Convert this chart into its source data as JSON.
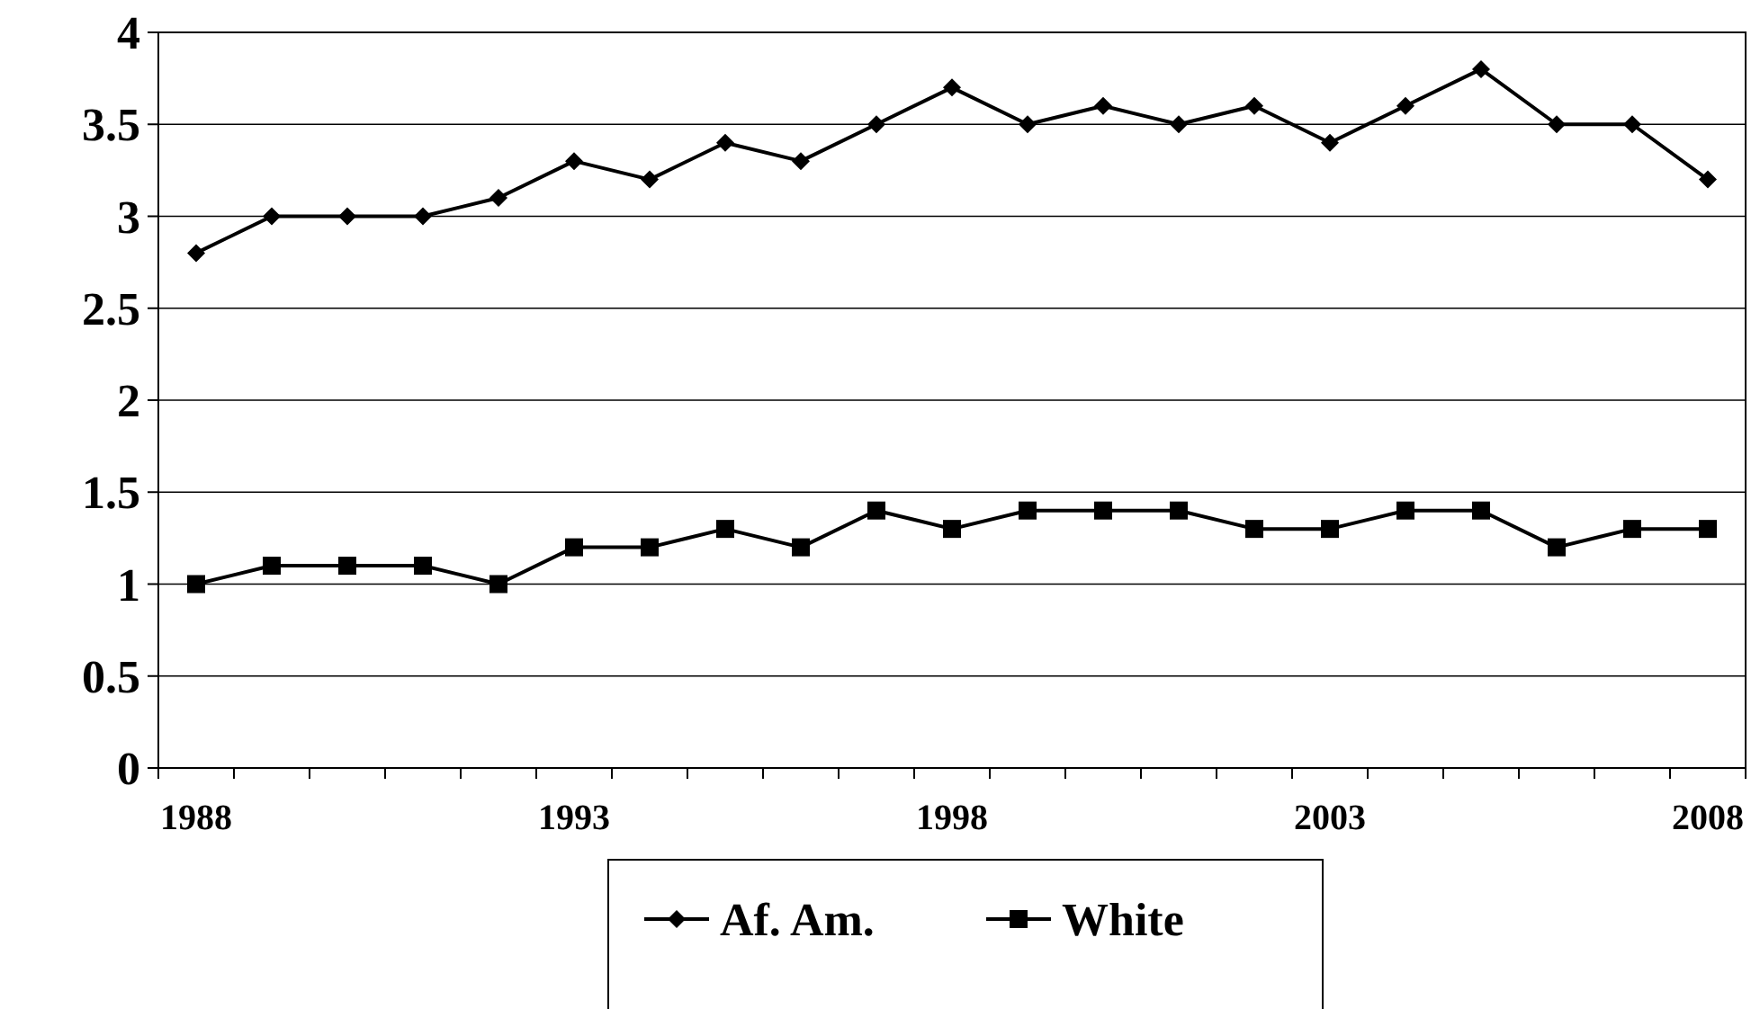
{
  "chart_data": {
    "type": "line",
    "categories": [
      "1988",
      null,
      null,
      null,
      null,
      "1993",
      null,
      null,
      null,
      null,
      "1998",
      null,
      null,
      null,
      null,
      "2003",
      null,
      null,
      null,
      null,
      "2008"
    ],
    "series": [
      {
        "name": "Af. Am.",
        "color": "#000000",
        "marker": "diamond",
        "values": [
          2.8,
          3.0,
          3.0,
          3.0,
          3.1,
          3.3,
          3.2,
          3.4,
          3.3,
          3.5,
          3.7,
          3.5,
          3.6,
          3.5,
          3.6,
          3.4,
          3.6,
          3.8,
          3.5,
          3.5,
          3.2
        ]
      },
      {
        "name": "White",
        "color": "#000000",
        "marker": "square",
        "values": [
          1.0,
          1.1,
          1.1,
          1.1,
          1.0,
          1.2,
          1.2,
          1.3,
          1.2,
          1.4,
          1.3,
          1.4,
          1.4,
          1.4,
          1.3,
          1.3,
          1.4,
          1.4,
          1.2,
          1.3,
          1.3
        ]
      }
    ],
    "ylim": [
      0,
      4
    ],
    "yticks": [
      0,
      0.5,
      1,
      1.5,
      2,
      2.5,
      3,
      3.5,
      4
    ],
    "grid": "y",
    "legend": "bottom",
    "line_style": "solid"
  }
}
